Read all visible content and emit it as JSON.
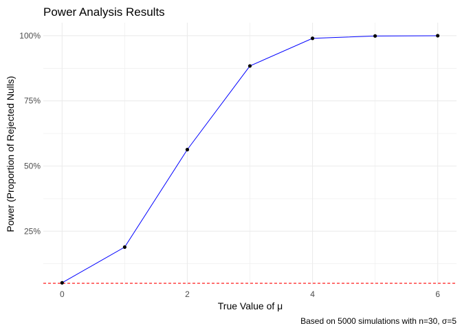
{
  "chart_data": {
    "type": "line",
    "title": "Power Analysis Results",
    "xlabel": "True Value of μ",
    "ylabel": "Power (Proportion of Rejected Nulls)",
    "caption": "Based on 5000 simulations with n=30, σ=5",
    "x": [
      0,
      1,
      2,
      3,
      4,
      5,
      6
    ],
    "series": [
      {
        "values": [
          0.052,
          0.189,
          0.563,
          0.884,
          0.99,
          0.999,
          1.0
        ]
      }
    ],
    "reference_line": {
      "y": 0.05,
      "style": "dashed"
    },
    "xlim": [
      -0.3,
      6.3
    ],
    "ylim": [
      0.045,
      1.05
    ],
    "x_ticks": [
      0,
      2,
      4,
      6
    ],
    "x_tick_labels": [
      "0",
      "2",
      "4",
      "6"
    ],
    "y_ticks": [
      0.25,
      0.5,
      0.75,
      1.0
    ],
    "y_tick_labels": [
      "25%",
      "50%",
      "75%",
      "100%"
    ],
    "x_minor_ticks": [
      1,
      3,
      5
    ],
    "y_minor_ticks": [
      0.125,
      0.375,
      0.625,
      0.875
    ],
    "grid": true,
    "colors": {
      "line": "#0000ff",
      "point": "#000000",
      "reference": "#ff0000",
      "grid": "#ebebeb"
    }
  }
}
